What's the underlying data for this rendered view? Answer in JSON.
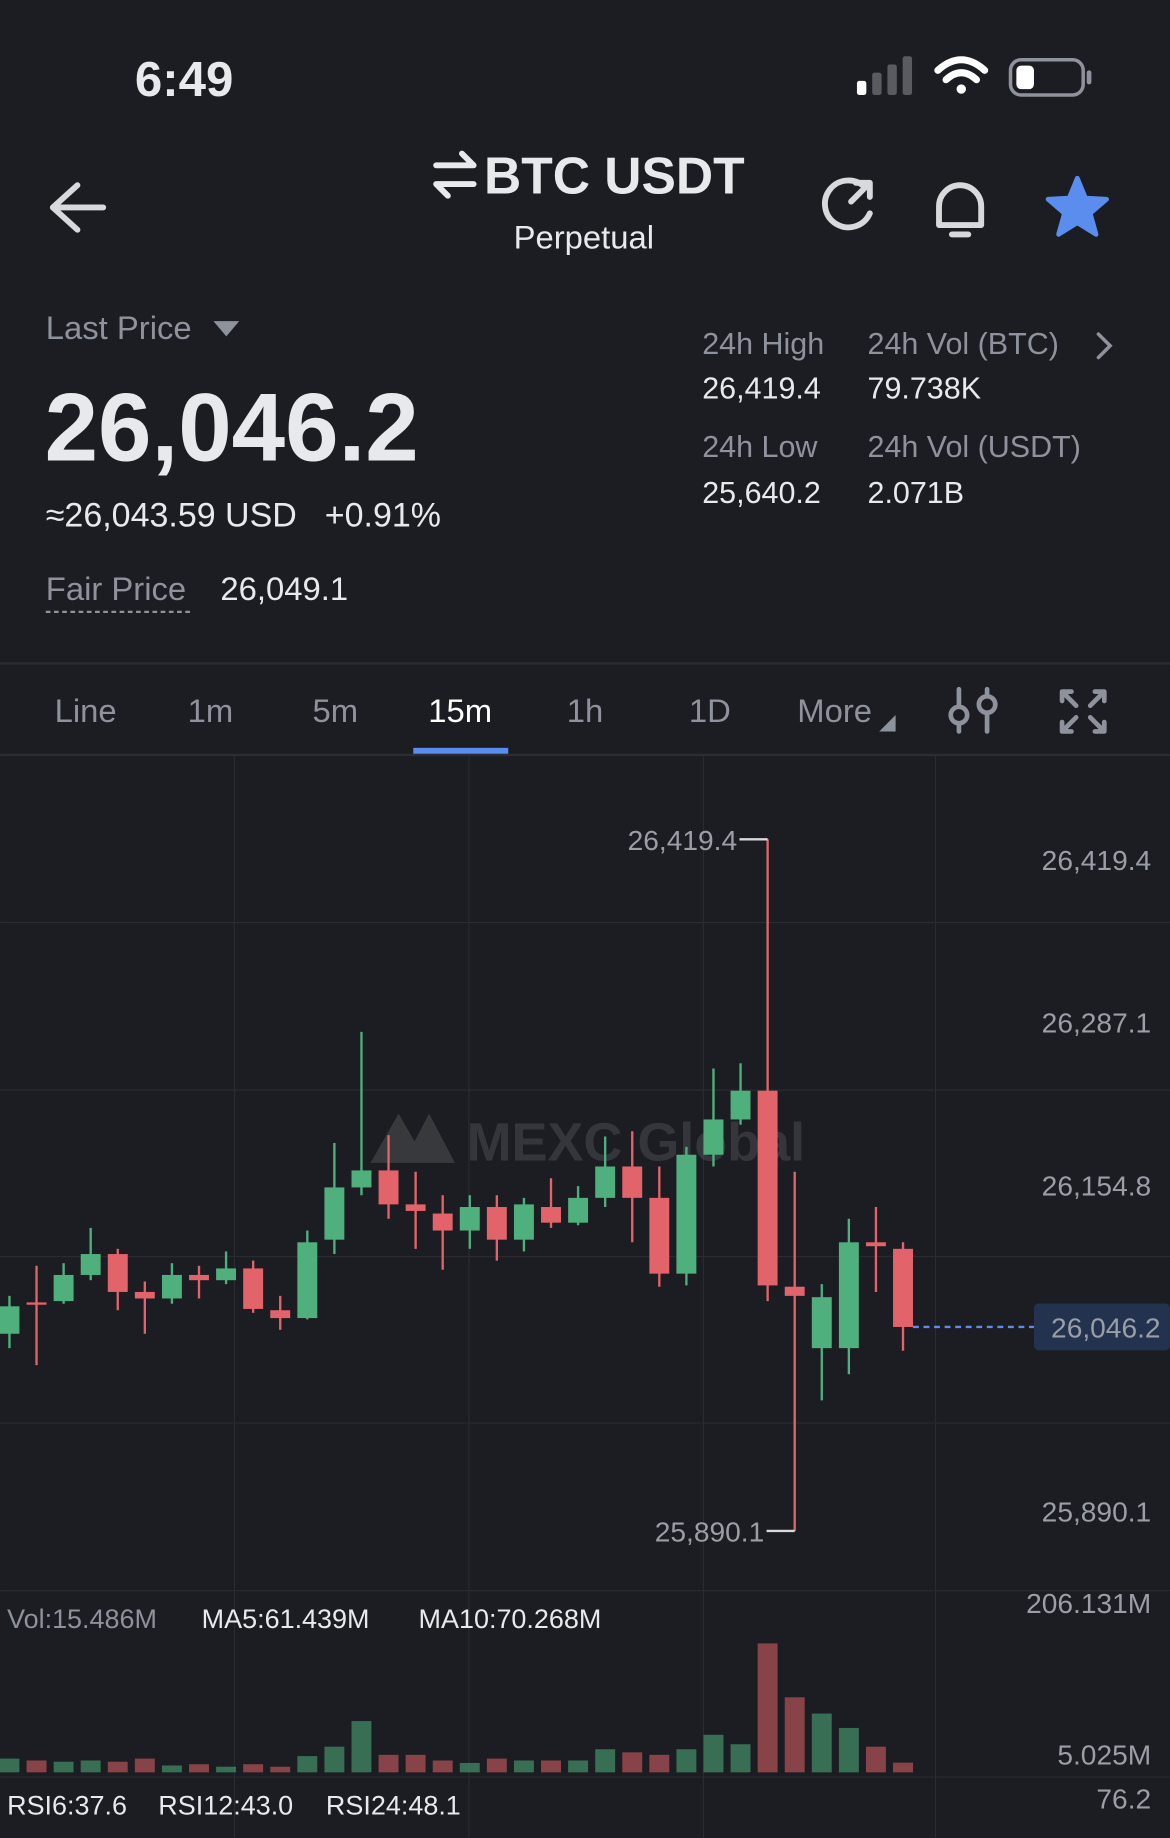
{
  "status_bar": {
    "time": "6:49"
  },
  "header": {
    "title": "BTC USDT",
    "subtitle": "Perpetual"
  },
  "price": {
    "label": "Last Price",
    "last": "26,046.2",
    "usd": "≈26,043.59 USD",
    "change": "+0.91%",
    "fair_label": "Fair Price",
    "fair": "26,049.1"
  },
  "stats": [
    {
      "label": "24h High",
      "value": "26,419.4"
    },
    {
      "label": "24h Vol (BTC)",
      "value": "79.738K"
    },
    {
      "label": "24h Low",
      "value": "25,640.2"
    },
    {
      "label": "24h Vol  (USDT)",
      "value": "2.071B"
    }
  ],
  "tabs": [
    "Line",
    "1m",
    "5m",
    "15m",
    "1h",
    "1D",
    "More"
  ],
  "active_tab": 3,
  "chart": {
    "type": "candlestick",
    "watermark": "MEXC Global",
    "ylim": [
      25841.7,
      26483.1
    ],
    "yticks": [
      {
        "value": 26419.4,
        "label": "26,419.4"
      },
      {
        "value": 26287.1,
        "label": "26,287.1"
      },
      {
        "value": 26154.8,
        "label": "26,154.8"
      },
      {
        "value": 25890.1,
        "label": "25,890.1"
      }
    ],
    "high_label": {
      "value": 26419.4,
      "label": "26,419.4"
    },
    "low_label": {
      "value": 25890.1,
      "label": "25,890.1"
    },
    "last_label": {
      "value": 26046.2,
      "label": "26,046.2"
    },
    "up_color": "#4fb07e",
    "down_color": "#e2636a",
    "candles": {
      "open": [
        26041,
        26065,
        26066,
        26086,
        26102,
        26073,
        26068,
        26086,
        26082,
        26091,
        26059,
        26053,
        26113,
        26153,
        26166,
        26140,
        26133,
        26120,
        26138,
        26113,
        26138,
        26126,
        26145,
        26169,
        26145,
        26087,
        26178,
        26205,
        26227,
        26077,
        26030,
        26030,
        26111,
        26106
      ],
      "high": [
        26070,
        26093,
        26095,
        26122,
        26106,
        26081,
        26095,
        26093,
        26104,
        26097,
        26070,
        26120,
        26187,
        26272,
        26193,
        26165,
        26147,
        26147,
        26147,
        26145,
        26160,
        26154,
        26192,
        26196,
        26169,
        26184,
        26244,
        26248,
        26419.4,
        26165,
        26079,
        26129,
        26138,
        26111
      ],
      "low": [
        26030,
        26017,
        26064,
        26082,
        26059,
        26041,
        26064,
        26068,
        26079,
        26057,
        26044,
        26052,
        26102,
        26147,
        26129,
        26106,
        26090,
        26106,
        26097,
        26104,
        26122,
        26124,
        26138,
        26111,
        26077,
        26078,
        26169,
        26201,
        26066,
        25890.1,
        25990,
        26010,
        26073,
        26028
      ],
      "close": [
        26062,
        26064,
        26086,
        26102,
        26073,
        26068,
        26086,
        26082,
        26091,
        26060,
        26053,
        26111,
        26153,
        26166,
        26140,
        26135,
        26120,
        26138,
        26113,
        26140,
        26126,
        26145,
        26169,
        26145,
        26087,
        26178,
        26205,
        26227,
        26078,
        26070,
        26069,
        26111,
        26108,
        26046.2
      ]
    },
    "volume": {
      "values": [
        22,
        19,
        17,
        19,
        17,
        22,
        11,
        13,
        9,
        13,
        9,
        26,
        41,
        82,
        28,
        28,
        19,
        15,
        22,
        19,
        19,
        19,
        37,
        32,
        28,
        37,
        60,
        45,
        206.131,
        120,
        94,
        71,
        41,
        15.486
      ],
      "ylim": [
        0,
        206.131
      ],
      "ticks": [
        {
          "value": 206.131,
          "label": "206.131M"
        },
        {
          "value": 5.025,
          "label": "5.025M"
        }
      ]
    },
    "indicators": [
      "Vol:15.486M",
      "MA5:61.439M",
      "MA10:70.268M"
    ],
    "rsi": [
      "RSI6:37.6",
      "RSI12:43.0",
      "RSI24:48.1"
    ],
    "rsi_tick": "76.2"
  }
}
